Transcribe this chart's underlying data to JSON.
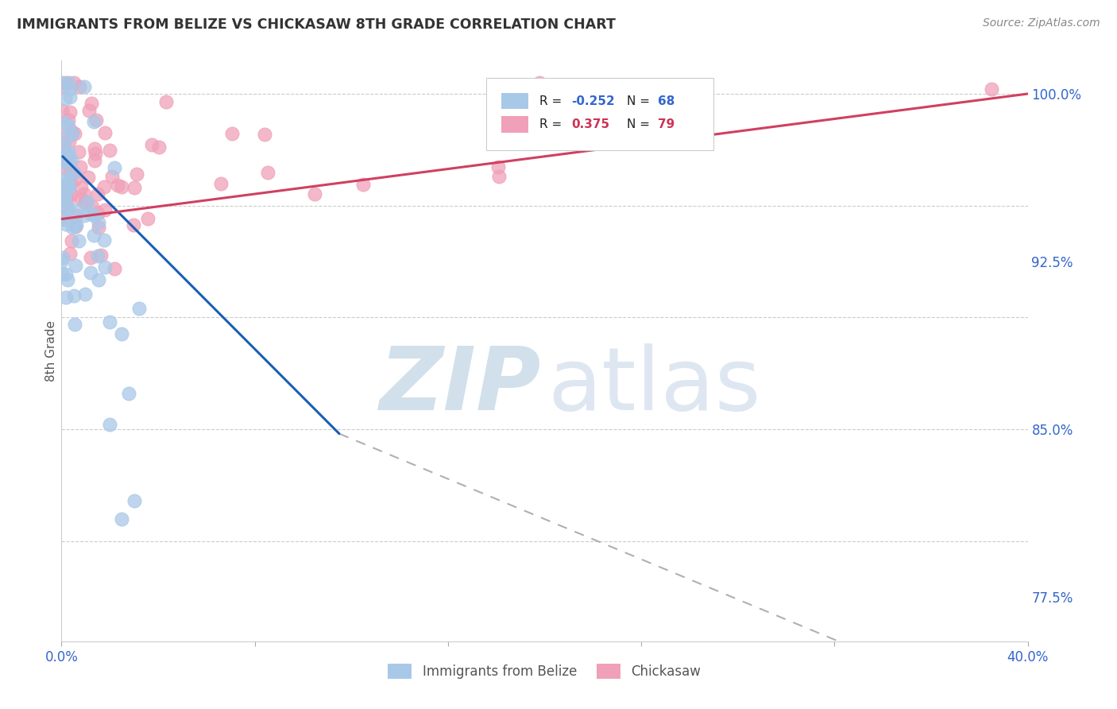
{
  "title": "IMMIGRANTS FROM BELIZE VS CHICKASAW 8TH GRADE CORRELATION CHART",
  "source": "Source: ZipAtlas.com",
  "ylabel": "8th Grade",
  "yticks": [
    "100.0%",
    "92.5%",
    "85.0%",
    "77.5%"
  ],
  "ytick_vals": [
    1.0,
    0.925,
    0.85,
    0.775
  ],
  "legend_blue_label": "Immigrants from Belize",
  "legend_pink_label": "Chickasaw",
  "background_color": "#ffffff",
  "grid_color": "#cccccc",
  "title_color": "#333333",
  "source_color": "#888888",
  "blue_scatter_color": "#a8c8e8",
  "blue_line_color": "#1a5fb4",
  "pink_scatter_color": "#f0a0b8",
  "pink_line_color": "#d04060",
  "xmin": 0.0,
  "xmax": 0.4,
  "ymin": 0.755,
  "ymax": 1.015
}
